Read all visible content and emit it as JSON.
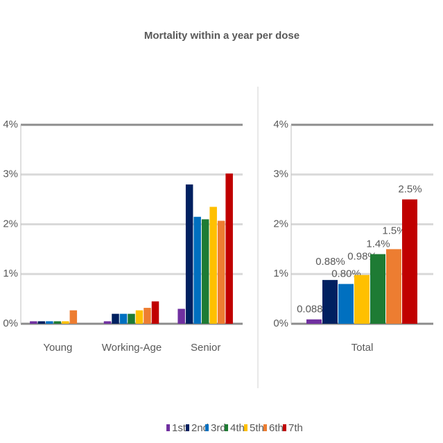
{
  "title": "Mortality within a year per dose",
  "chart_data": [
    {
      "type": "bar",
      "categories": [
        "Young",
        "Working-Age",
        "Senior"
      ],
      "series": [
        {
          "name": "1st",
          "color": "#7030a0",
          "values": [
            0.05,
            0.05,
            0.3
          ]
        },
        {
          "name": "2nd",
          "color": "#002060",
          "values": [
            0.05,
            0.2,
            2.8
          ]
        },
        {
          "name": "3rd",
          "color": "#0070c0",
          "values": [
            0.05,
            0.2,
            2.15
          ]
        },
        {
          "name": "4th",
          "color": "#1e7b34",
          "values": [
            0.05,
            0.2,
            2.1
          ]
        },
        {
          "name": "5th",
          "color": "#ffc000",
          "values": [
            0.05,
            0.27,
            2.35
          ]
        },
        {
          "name": "6th",
          "color": "#ed7d31",
          "values": [
            0.27,
            0.32,
            2.07
          ]
        },
        {
          "name": "7th",
          "color": "#c00000",
          "values": [
            0,
            0.45,
            3.02
          ]
        }
      ],
      "ylim": [
        0,
        4
      ],
      "yticks": [
        {
          "value": 0,
          "label": "0%"
        },
        {
          "value": 1,
          "label": "1%"
        },
        {
          "value": 2,
          "label": "2%"
        },
        {
          "value": 3,
          "label": "3%"
        },
        {
          "value": 4,
          "label": "4%"
        }
      ],
      "grid": true
    },
    {
      "type": "bar",
      "categories": [
        "Total"
      ],
      "series": [
        {
          "color": "#7030a0",
          "values": [
            0.088
          ],
          "value_labels": [
            "0.088%"
          ]
        },
        {
          "color": "#002060",
          "values": [
            0.88
          ],
          "value_labels": [
            "0.88%"
          ]
        },
        {
          "color": "#0070c0",
          "values": [
            0.8
          ],
          "value_labels": [
            "0.80%"
          ]
        },
        {
          "color": "#ffc000",
          "values": [
            0.98
          ],
          "value_labels": [
            "0.98%"
          ]
        },
        {
          "color": "#1e7b34",
          "values": [
            1.4
          ],
          "value_labels": [
            "1.4%"
          ]
        },
        {
          "color": "#ed7d31",
          "values": [
            1.5
          ],
          "value_labels": [
            "1.5%"
          ]
        },
        {
          "color": "#c00000",
          "values": [
            2.5
          ],
          "value_labels": [
            "2.5%"
          ]
        }
      ],
      "ylim": [
        0,
        4
      ],
      "yticks": [
        {
          "value": 0,
          "label": "0%"
        },
        {
          "value": 1,
          "label": "1%"
        },
        {
          "value": 2,
          "label": "2%"
        },
        {
          "value": 3,
          "label": "3%"
        },
        {
          "value": 4,
          "label": "4%"
        }
      ],
      "grid": true
    }
  ]
}
